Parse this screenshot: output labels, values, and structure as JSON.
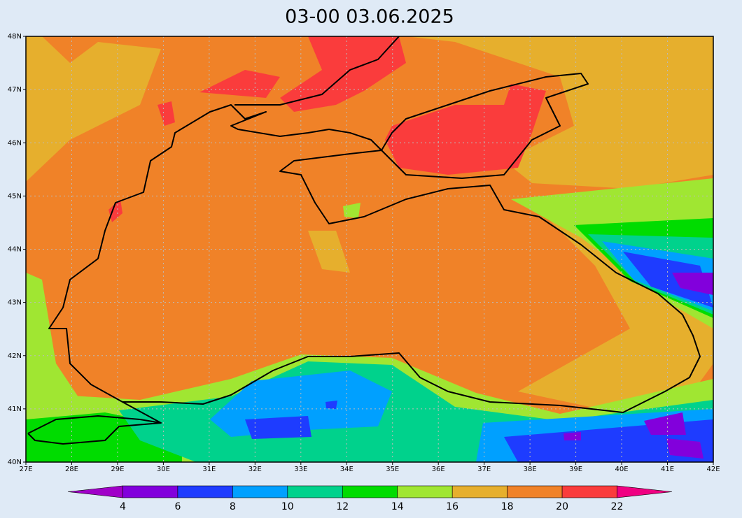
{
  "title": "03-00    03.06.2025",
  "map": {
    "lon_ticks": [
      "27E",
      "28E",
      "29E",
      "30E",
      "31E",
      "32E",
      "33E",
      "34E",
      "35E",
      "36E",
      "37E",
      "38E",
      "39E",
      "40E",
      "41E",
      "42E"
    ],
    "lat_ticks": [
      "40N",
      "41N",
      "42N",
      "43N",
      "44N",
      "45N",
      "46N",
      "47N",
      "48N"
    ]
  },
  "colorbar": {
    "levels": [
      4,
      6,
      8,
      10,
      12,
      14,
      16,
      18,
      20,
      22
    ],
    "colors": [
      "#a000c8",
      "#8200dc",
      "#1e3cff",
      "#00a0ff",
      "#00d28c",
      "#00dc00",
      "#a0e632",
      "#e6af2d",
      "#f08228",
      "#fa3c3c",
      "#f00082"
    ]
  }
}
